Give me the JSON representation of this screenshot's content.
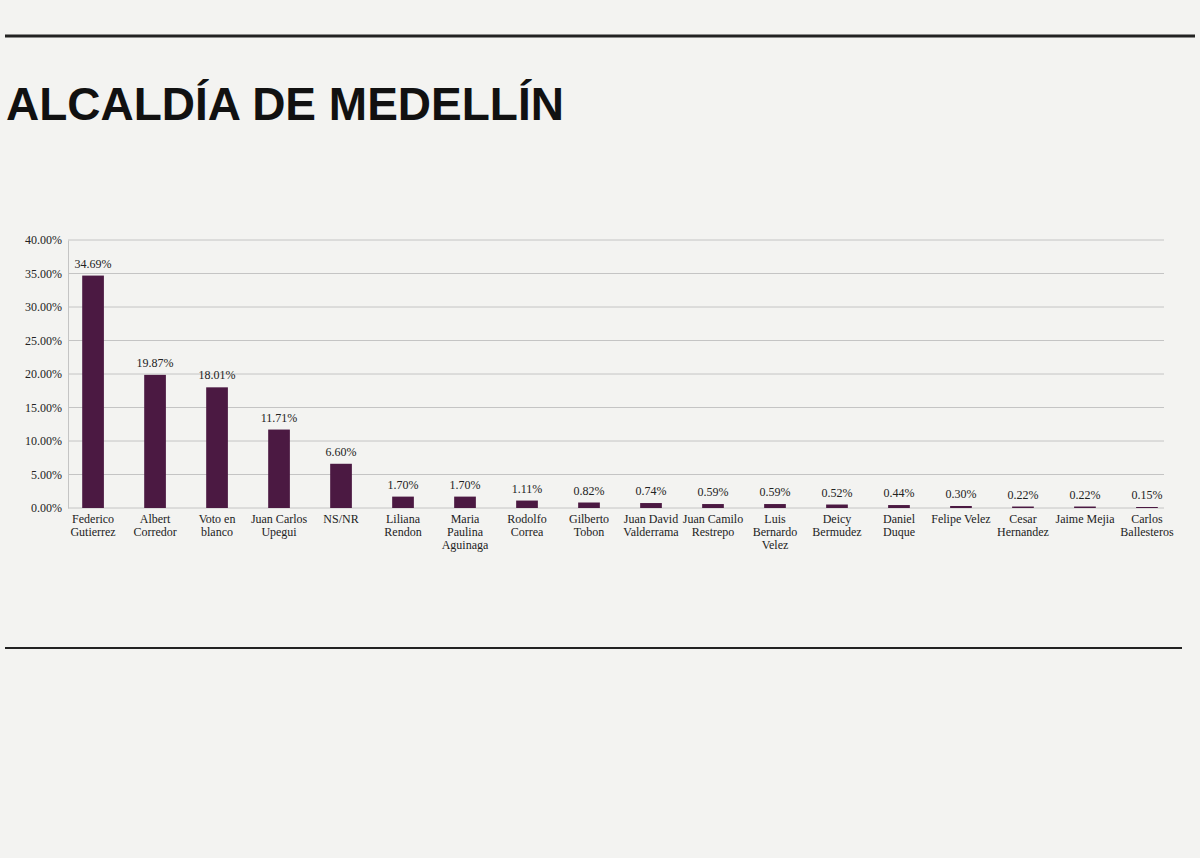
{
  "chart_data": {
    "type": "bar",
    "title": "ALCALDÍA DE MEDELLÍN",
    "categories": [
      "Federico Gutierrez",
      "Albert Corredor",
      "Voto en blanco",
      "Juan Carlos Upegui",
      "NS/NR",
      "Liliana Rendon",
      "Maria Paulina Aguinaga",
      "Rodolfo Correa",
      "Gilberto Tobon",
      "Juan David Valderrama",
      "Juan Camilo Restrepo",
      "Luis Bernardo Velez",
      "Deicy Bermudez",
      "Daniel Duque",
      "Felipe Velez",
      "Cesar Hernandez",
      "Jaime Mejia",
      "Carlos Ballesteros"
    ],
    "values": [
      34.69,
      19.87,
      18.01,
      11.71,
      6.6,
      1.7,
      1.7,
      1.11,
      0.82,
      0.74,
      0.59,
      0.59,
      0.52,
      0.44,
      0.3,
      0.22,
      0.22,
      0.15
    ],
    "value_labels": [
      "34.69%",
      "19.87%",
      "18.01%",
      "11.71%",
      "6.60%",
      "1.70%",
      "1.70%",
      "1.11%",
      "0.82%",
      "0.74%",
      "0.59%",
      "0.59%",
      "0.52%",
      "0.44%",
      "0.30%",
      "0.22%",
      "0.22%",
      "0.15%"
    ],
    "color": "#4b1942",
    "ylim": [
      0,
      40
    ],
    "yticks": [
      {
        "value": 0,
        "label": "0.00%"
      },
      {
        "value": 5,
        "label": "5.00%"
      },
      {
        "value": 10,
        "label": "10.00%"
      },
      {
        "value": 15,
        "label": "15.00%"
      },
      {
        "value": 20,
        "label": "20.00%"
      },
      {
        "value": 25,
        "label": "25.00%"
      },
      {
        "value": 30,
        "label": "30.00%"
      },
      {
        "value": 35,
        "label": "35.00%"
      },
      {
        "value": 40,
        "label": "40.00%"
      }
    ],
    "grid": true,
    "data_labels": true
  }
}
